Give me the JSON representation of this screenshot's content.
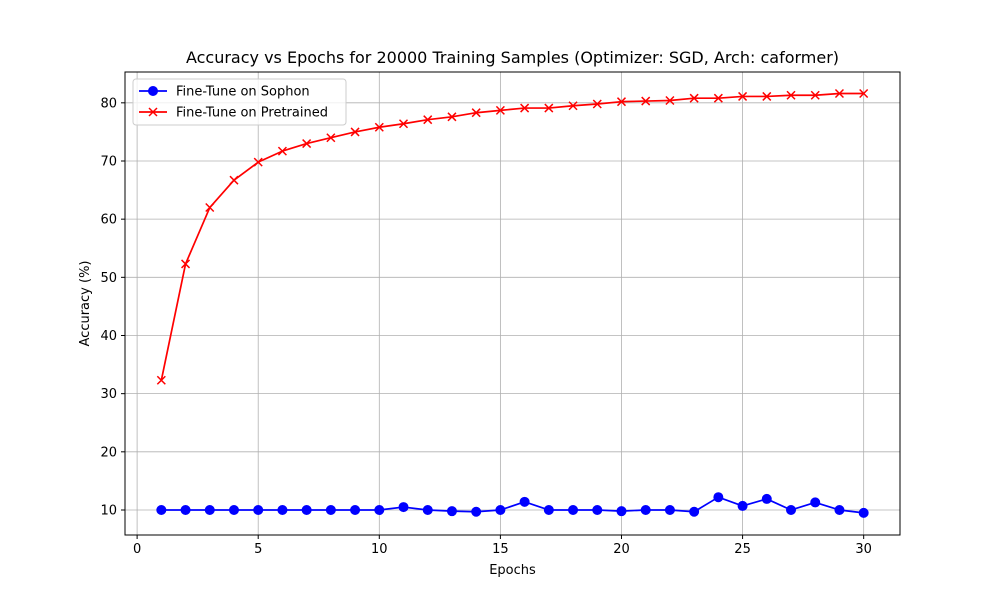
{
  "chart_data": {
    "type": "line",
    "title": "Accuracy vs Epochs for 20000 Training Samples (Optimizer: SGD, Arch: caformer)",
    "xlabel": "Epochs",
    "ylabel": "Accuracy (%)",
    "xlim": [
      -0.5,
      31.5
    ],
    "ylim": [
      5.7,
      85.3
    ],
    "xticks": [
      0,
      5,
      10,
      15,
      20,
      25,
      30
    ],
    "yticks": [
      10,
      20,
      30,
      40,
      50,
      60,
      70,
      80
    ],
    "grid": true,
    "legend_position": "top-left",
    "x": [
      1,
      2,
      3,
      4,
      5,
      6,
      7,
      8,
      9,
      10,
      11,
      12,
      13,
      14,
      15,
      16,
      17,
      18,
      19,
      20,
      21,
      22,
      23,
      24,
      25,
      26,
      27,
      28,
      29,
      30
    ],
    "series": [
      {
        "name": "Fine-Tune on Sophon",
        "color": "#0000ff",
        "marker": "circle",
        "values": [
          10.0,
          10.0,
          10.0,
          10.0,
          10.0,
          10.0,
          10.0,
          10.0,
          10.0,
          10.0,
          10.5,
          10.0,
          9.8,
          9.7,
          10.0,
          11.4,
          10.0,
          10.0,
          10.0,
          9.8,
          10.0,
          10.0,
          9.7,
          12.2,
          10.7,
          11.9,
          10.0,
          11.3,
          10.0,
          9.5
        ]
      },
      {
        "name": "Fine-Tune on Pretrained",
        "color": "#ff0000",
        "marker": "x",
        "values": [
          32.3,
          52.3,
          62.0,
          66.7,
          69.8,
          71.7,
          73.0,
          74.0,
          75.0,
          75.8,
          76.4,
          77.1,
          77.6,
          78.3,
          78.7,
          79.1,
          79.1,
          79.5,
          79.8,
          80.2,
          80.3,
          80.4,
          80.8,
          80.8,
          81.1,
          81.1,
          81.3,
          81.3,
          81.6,
          81.6
        ]
      }
    ]
  }
}
